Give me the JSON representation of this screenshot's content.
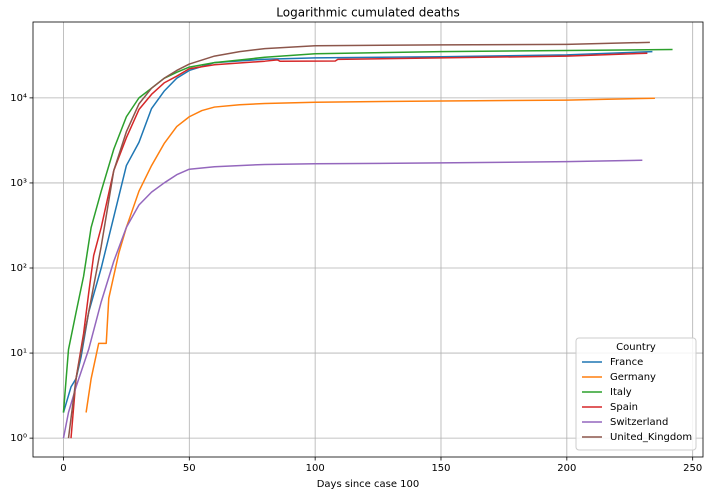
{
  "chart_data": {
    "type": "line",
    "title": "Logarithmic cumulated deaths",
    "x_label": "Days since case 100",
    "log_y": true,
    "grid": true,
    "legend_loc": "lower right",
    "legend_title": "Country",
    "xlim": [
      -12.1,
      254.1
    ],
    "xticks": [
      0,
      50,
      100,
      150,
      200,
      250
    ],
    "ylim": [
      0.6,
      78000
    ],
    "yticks": [
      {
        "value": 1,
        "label": "10⁰"
      },
      {
        "value": 10,
        "label": "10¹"
      },
      {
        "value": 100,
        "label": "10²"
      },
      {
        "value": 1000,
        "label": "10³"
      },
      {
        "value": 10000,
        "label": "10⁴"
      }
    ],
    "series": [
      {
        "name": "France",
        "color": "#1f77b4",
        "x": [
          0,
          3,
          5,
          7,
          10,
          15,
          20,
          25,
          30,
          35,
          40,
          45,
          50,
          60,
          80,
          100,
          150,
          200,
          234
        ],
        "values": [
          2,
          4,
          5,
          9,
          30,
          100,
          400,
          1600,
          3000,
          7500,
          12000,
          17000,
          21000,
          26000,
          28500,
          29500,
          30500,
          32000,
          35000
        ]
      },
      {
        "name": "Germany",
        "color": "#ff7f0e",
        "x": [
          9,
          11,
          14,
          17,
          18,
          22,
          25,
          30,
          35,
          40,
          45,
          50,
          55,
          60,
          70,
          80,
          100,
          150,
          200,
          235
        ],
        "values": [
          2,
          5,
          13,
          13,
          44,
          150,
          300,
          800,
          1600,
          2900,
          4600,
          6000,
          7100,
          7800,
          8300,
          8600,
          8900,
          9200,
          9400,
          9900
        ]
      },
      {
        "name": "Italy",
        "color": "#2ca02c",
        "x": [
          0,
          2,
          5,
          8,
          11,
          15,
          20,
          25,
          30,
          35,
          40,
          45,
          50,
          60,
          80,
          100,
          150,
          200,
          242
        ],
        "values": [
          2,
          11,
          30,
          80,
          300,
          800,
          2500,
          6000,
          10000,
          13000,
          17000,
          20000,
          23000,
          26000,
          30000,
          33000,
          35000,
          36000,
          37000
        ]
      },
      {
        "name": "Spain",
        "color": "#d62728",
        "x": [
          3,
          5,
          8,
          10,
          12,
          15,
          20,
          25,
          30,
          35,
          40,
          45,
          50,
          60,
          80,
          85,
          86,
          108,
          109,
          150,
          200,
          232
        ],
        "values": [
          1,
          5,
          17,
          50,
          140,
          300,
          1400,
          3400,
          7300,
          11000,
          15000,
          18000,
          22000,
          24500,
          27000,
          28000,
          27000,
          27100,
          28400,
          29500,
          31000,
          33500
        ]
      },
      {
        "name": "Switzerland",
        "color": "#9467bd",
        "x": [
          0,
          2,
          5,
          10,
          15,
          20,
          25,
          30,
          35,
          40,
          45,
          50,
          60,
          80,
          100,
          150,
          200,
          230
        ],
        "values": [
          1,
          2,
          4,
          11,
          40,
          120,
          300,
          550,
          780,
          1000,
          1250,
          1450,
          1550,
          1650,
          1680,
          1720,
          1780,
          1850
        ]
      },
      {
        "name": "United_Kingdom",
        "color": "#8c564b",
        "x": [
          2,
          5,
          10,
          15,
          20,
          25,
          30,
          35,
          40,
          45,
          50,
          60,
          70,
          80,
          100,
          150,
          200,
          233
        ],
        "values": [
          1,
          5,
          30,
          180,
          1400,
          4000,
          8500,
          13000,
          17000,
          21000,
          25000,
          31000,
          35000,
          38000,
          41000,
          42000,
          42500,
          45000
        ]
      }
    ]
  }
}
